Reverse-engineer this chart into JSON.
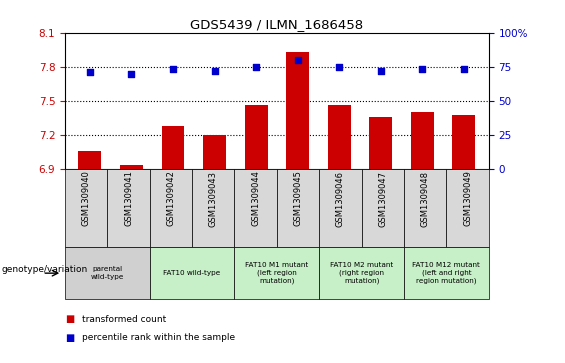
{
  "title": "GDS5439 / ILMN_1686458",
  "samples": [
    "GSM1309040",
    "GSM1309041",
    "GSM1309042",
    "GSM1309043",
    "GSM1309044",
    "GSM1309045",
    "GSM1309046",
    "GSM1309047",
    "GSM1309048",
    "GSM1309049"
  ],
  "bar_values": [
    7.06,
    6.93,
    7.28,
    7.2,
    7.46,
    7.93,
    7.46,
    7.36,
    7.4,
    7.37
  ],
  "percentile_values": [
    71,
    70,
    73,
    72,
    75,
    80,
    75,
    72,
    73,
    73
  ],
  "ylim_left": [
    6.9,
    8.1
  ],
  "ylim_right": [
    0,
    100
  ],
  "yticks_left": [
    6.9,
    7.2,
    7.5,
    7.8,
    8.1
  ],
  "yticks_right": [
    0,
    25,
    50,
    75,
    100
  ],
  "bar_color": "#cc0000",
  "dot_color": "#0000cc",
  "dotted_line_values": [
    7.2,
    7.5,
    7.8
  ],
  "genotype_groups": [
    {
      "label": "parental\nwild-type",
      "start": 0,
      "end": 2,
      "color": "#d0d0d0"
    },
    {
      "label": "FAT10 wild-type",
      "start": 2,
      "end": 4,
      "color": "#c8f0c8"
    },
    {
      "label": "FAT10 M1 mutant\n(left region\nmutation)",
      "start": 4,
      "end": 6,
      "color": "#c8f0c8"
    },
    {
      "label": "FAT10 M2 mutant\n(right region\nmutation)",
      "start": 6,
      "end": 8,
      "color": "#c8f0c8"
    },
    {
      "label": "FAT10 M12 mutant\n(left and right\nregion mutation)",
      "start": 8,
      "end": 10,
      "color": "#c8f0c8"
    }
  ],
  "legend_label_bar": "transformed count",
  "legend_label_dot": "percentile rank within the sample",
  "genotype_label": "genotype/variation",
  "background_color": "#ffffff",
  "tick_color_left": "#cc0000",
  "tick_color_right": "#0000cc",
  "cell_bg": "#d8d8d8"
}
